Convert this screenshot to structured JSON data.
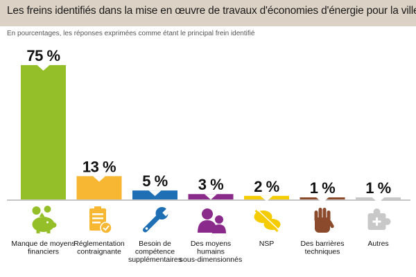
{
  "header": {
    "title": "Les freins identifiés dans la mise en  œuvre de travaux d'économies d'énergie pour la ville",
    "subtitle": "En pourcentages, les réponses exprimées comme étant le principal frein identifié"
  },
  "chart_data": {
    "type": "bar",
    "title": "Les freins identifiés dans la mise en  œuvre de travaux d'économies d'énergie pour la ville",
    "subtitle": "En pourcentages, les réponses exprimées comme étant le principal frein identifié",
    "unit": "%",
    "ylim": [
      0,
      75
    ],
    "grid": false,
    "legend": "none",
    "categories": [
      [
        "Manque de moyens",
        "financiers"
      ],
      [
        "Réglementation",
        "contraignante"
      ],
      [
        "Besoin de",
        "compétence",
        "supplémentaires"
      ],
      [
        "Des moyens",
        "humains",
        "sous-dimensionnés"
      ],
      [
        "NSP"
      ],
      [
        "Des barrières",
        "techniques"
      ],
      [
        "Autres"
      ]
    ],
    "values": [
      75,
      13,
      5,
      3,
      2,
      1,
      1
    ],
    "value_labels": [
      "75 %",
      "13 %",
      "5 %",
      "3 %",
      "2 %",
      "1 %",
      "1 %"
    ],
    "icons": [
      "piggy-bank-icon",
      "clipboard-check-icon",
      "wrench-icon",
      "people-icon",
      "no-answer-icon",
      "hand-stop-icon",
      "puzzle-plus-icon"
    ]
  },
  "colors": {
    "title_bg": "#dcd1c5",
    "bars": [
      "#95bf28",
      "#f7b733",
      "#1f6fb5",
      "#8a2a8a",
      "#f5cc00",
      "#8b4a2b",
      "#c8c8c8"
    ],
    "axis": "#8c8c8c"
  }
}
